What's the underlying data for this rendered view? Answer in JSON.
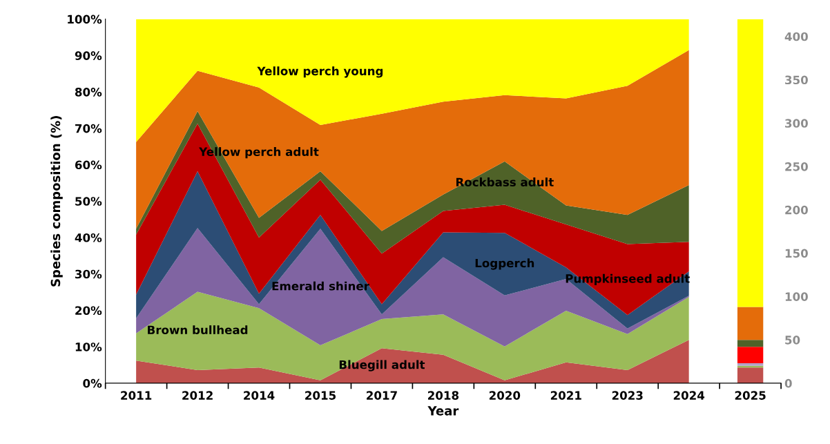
{
  "chart_data": {
    "type": "area",
    "xlabel": "Year",
    "ylabel": "Species composition (%)",
    "stacked": true,
    "categories": [
      "2011",
      "2012",
      "2014",
      "2015",
      "2017",
      "2018",
      "2020",
      "2021",
      "2023",
      "2024",
      "2025"
    ],
    "ylim": [
      0,
      100
    ],
    "yticks": [
      {
        "value": 0,
        "label": "0%"
      },
      {
        "value": 10,
        "label": "10%"
      },
      {
        "value": 20,
        "label": "20%"
      },
      {
        "value": 30,
        "label": "30%"
      },
      {
        "value": 40,
        "label": "40%"
      },
      {
        "value": 50,
        "label": "50%"
      },
      {
        "value": 60,
        "label": "60%"
      },
      {
        "value": 70,
        "label": "70%"
      },
      {
        "value": 80,
        "label": "80%"
      },
      {
        "value": 90,
        "label": "90%"
      },
      {
        "value": 100,
        "label": "100%"
      }
    ],
    "y2lim": [
      0,
      420
    ],
    "y2ticks": [
      0,
      50,
      100,
      150,
      200,
      250,
      300,
      350,
      400
    ],
    "grid": false,
    "legend": false,
    "series": [
      {
        "name": "Bluegill adult",
        "color": "#c0504d",
        "values": [
          6.2,
          3.6,
          4.3,
          0.8,
          9.6,
          7.8,
          0.8,
          5.7,
          3.6,
          11.9,
          null
        ]
      },
      {
        "name": "Brown bullhead",
        "color": "#9bbb59",
        "values": [
          7.5,
          21.5,
          16.3,
          9.6,
          8.0,
          11.1,
          9.3,
          14.2,
          9.9,
          11.8,
          null
        ]
      },
      {
        "name": "Emerald shiner",
        "color": "#8064a2",
        "values": [
          4.1,
          17.5,
          1.1,
          32.0,
          1.3,
          15.7,
          14.0,
          8.7,
          1.5,
          0.3,
          null
        ]
      },
      {
        "name": "Logperch",
        "color": "#2c4d75",
        "values": [
          6.5,
          15.6,
          2.9,
          3.8,
          2.8,
          6.8,
          17.2,
          3.2,
          3.7,
          6.7,
          null
        ]
      },
      {
        "name": "Pumpkinseed adult",
        "color": "#c00000",
        "values": [
          16.5,
          13.1,
          15.4,
          9.7,
          13.9,
          5.9,
          7.7,
          11.8,
          19.5,
          8.1,
          null
        ]
      },
      {
        "name": "Rockbass adult",
        "color": "#4f6228",
        "values": [
          1.6,
          3.4,
          5.4,
          2.3,
          6.2,
          4.5,
          11.9,
          5.2,
          8.0,
          15.6,
          null
        ]
      },
      {
        "name": "Yellow perch adult",
        "color": "#e46c0a",
        "values": [
          23.8,
          11.1,
          35.8,
          12.7,
          32.2,
          25.5,
          18.2,
          29.4,
          35.5,
          37.1,
          null
        ]
      },
      {
        "name": "Yellow perch young",
        "color": "#ffff00",
        "values": [
          33.8,
          14.2,
          18.8,
          29.1,
          26.0,
          22.7,
          20.9,
          21.8,
          18.3,
          8.5,
          null
        ]
      },
      {
        "type": "bar",
        "axis": "y2",
        "color": "#c0504d",
        "values": [
          null,
          null,
          null,
          null,
          null,
          null,
          null,
          null,
          null,
          null,
          18
        ]
      },
      {
        "type": "bar",
        "axis": "y2",
        "color": "#9bbb59",
        "values": [
          null,
          null,
          null,
          null,
          null,
          null,
          null,
          null,
          null,
          null,
          2
        ]
      },
      {
        "type": "bar",
        "axis": "y2",
        "color": "#b3a2c7",
        "values": [
          null,
          null,
          null,
          null,
          null,
          null,
          null,
          null,
          null,
          null,
          3
        ]
      },
      {
        "type": "bar",
        "axis": "y2",
        "color": "#ff0000",
        "values": [
          null,
          null,
          null,
          null,
          null,
          null,
          null,
          null,
          null,
          null,
          19
        ]
      },
      {
        "type": "bar",
        "axis": "y2",
        "color": "#4f6228",
        "values": [
          null,
          null,
          null,
          null,
          null,
          null,
          null,
          null,
          null,
          null,
          8
        ]
      },
      {
        "type": "bar",
        "axis": "y2",
        "color": "#e46c0a",
        "values": [
          null,
          null,
          null,
          null,
          null,
          null,
          null,
          null,
          null,
          null,
          38
        ]
      },
      {
        "type": "bar",
        "axis": "y2",
        "color": "#ffff00",
        "values": [
          null,
          null,
          null,
          null,
          null,
          null,
          null,
          null,
          null,
          null,
          332
        ]
      }
    ]
  }
}
